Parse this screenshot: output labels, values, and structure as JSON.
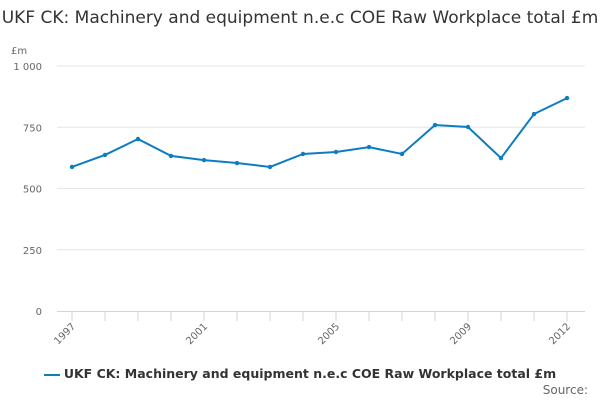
{
  "chart_data": {
    "type": "line",
    "title": "UKF CK: Machinery and equipment n.e.c COE Raw Workplace total £m",
    "ylabel": "£m",
    "ylim": [
      0,
      1000
    ],
    "yticks": [
      0,
      250,
      500,
      750,
      1000
    ],
    "ytick_labels": [
      "0",
      "250",
      "500",
      "750",
      "1 000"
    ],
    "xtick_labels": [
      "1997",
      "2001",
      "2005",
      "2009",
      "2012"
    ],
    "x": [
      1997,
      1998,
      1999,
      2000,
      2001,
      2002,
      2003,
      2004,
      2005,
      2006,
      2007,
      2008,
      2009,
      2010,
      2011,
      2012
    ],
    "series": [
      {
        "name": "UKF CK: Machinery and equipment n.e.c COE Raw Workplace total £m",
        "color": "#0d7dc1",
        "values": [
          588,
          637,
          702,
          633,
          616,
          604,
          588,
          641,
          649,
          669,
          641,
          759,
          751,
          624,
          804,
          869
        ]
      }
    ],
    "grid": true,
    "legend": "bottom"
  },
  "source": "Source:"
}
